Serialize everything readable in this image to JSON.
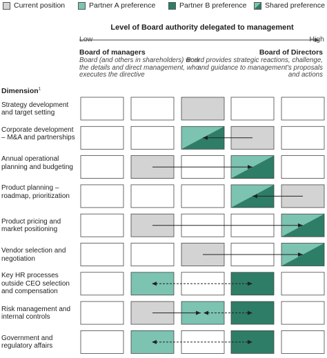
{
  "legend": {
    "current": "Current position",
    "partner_a": "Partner A preference",
    "partner_b": "Partner B preference",
    "shared": "Shared preference"
  },
  "colors": {
    "current": "#d3d3d3",
    "partner_a": "#7cc3b1",
    "partner_b": "#2e7d67",
    "empty": "#ffffff"
  },
  "scale": {
    "title": "Level of Board authority delegated to management",
    "low": "Low",
    "high": "High"
  },
  "left_end": {
    "title": "Board of managers",
    "desc": "Board (and others in shareholders) work the details and direct management, who executes the directive"
  },
  "right_end": {
    "title": "Board of Directors",
    "desc": "Board provides strategic reactions, challenge, and guidance to management's proposals and actions"
  },
  "dimension_header": "Dimension",
  "dimension_footnote": "1",
  "rows": [
    {
      "label": "Strategy development and target setting",
      "cells": [
        "empty",
        "empty",
        "current",
        "empty",
        "empty"
      ],
      "arrow": null
    },
    {
      "label": "Corporate development – M&A and partnerships",
      "cells": [
        "empty",
        "empty",
        "shared",
        "current",
        "empty"
      ],
      "arrow": {
        "from": 3,
        "to": 2,
        "style": "solid"
      }
    },
    {
      "label": "Annual operational planning and budgeting",
      "cells": [
        "empty",
        "current",
        "empty",
        "shared",
        "empty"
      ],
      "arrow": {
        "from": 1,
        "to": 3,
        "style": "solid"
      }
    },
    {
      "label": "Product planning – roadmap, prioritization",
      "cells": [
        "empty",
        "empty",
        "empty",
        "shared",
        "current"
      ],
      "arrow": {
        "from": 4,
        "to": 3,
        "style": "solid"
      }
    },
    {
      "label": "Product pricing and market positioning",
      "cells": [
        "empty",
        "current",
        "empty",
        "empty",
        "shared"
      ],
      "arrow": {
        "from": 1,
        "to": 4,
        "style": "solid"
      }
    },
    {
      "label": "Vendor selection and negotiation",
      "cells": [
        "empty",
        "empty",
        "current",
        "empty",
        "shared"
      ],
      "arrow": {
        "from": 2,
        "to": 4,
        "style": "solid"
      }
    },
    {
      "label": "Key HR processes outside CEO selection and compensation",
      "cells": [
        "empty",
        "partner_a",
        "empty",
        "partner_b",
        "empty"
      ],
      "arrow": {
        "from": 1,
        "to": 3,
        "style": "dashed"
      }
    },
    {
      "label": "Risk management and internal controls",
      "cells": [
        "empty",
        "current",
        "partner_a",
        "partner_b",
        "empty"
      ],
      "arrow": {
        "from": 1,
        "to": 3,
        "style": "solid_then_dashed"
      }
    },
    {
      "label": "Government and regulatory affairs",
      "cells": [
        "empty",
        "partner_a",
        "empty",
        "partner_b",
        "empty"
      ],
      "arrow": {
        "from": 1,
        "to": 3,
        "style": "dashed"
      }
    }
  ]
}
